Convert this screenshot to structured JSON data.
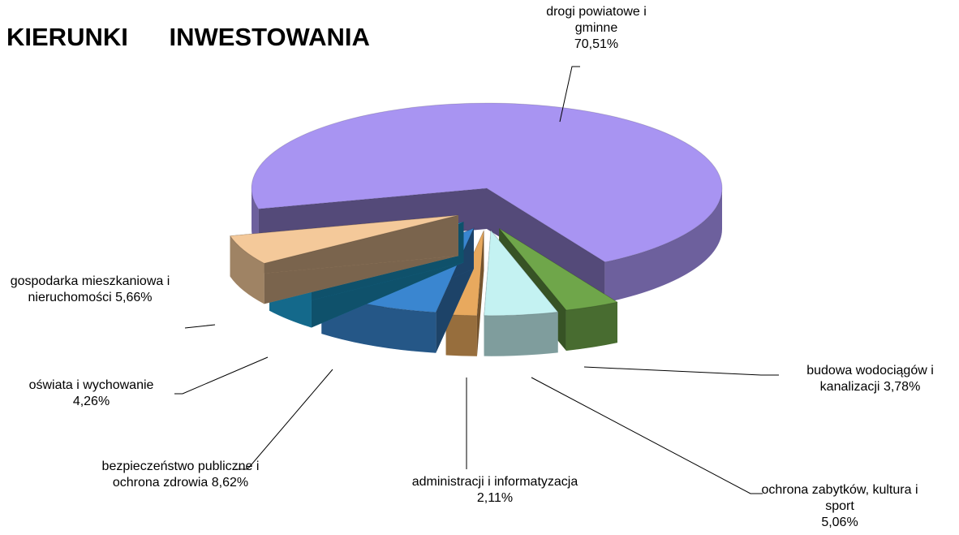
{
  "chart_data": {
    "type": "pie",
    "title": "KIERUNKI INWESTOWANIA",
    "categories": [
      "drogi powiatowe i gminne",
      "budowa wodociągów i kanalizacji",
      "ochrona zabytków, kultura i sport",
      "administracji i informatyzacja",
      "bezpieczeństwo publiczne i ochrona zdrowia",
      "oświata i wychowanie",
      "gospodarka mieszkaniowa i nieruchomości"
    ],
    "values": [
      70.51,
      3.78,
      5.06,
      2.11,
      8.62,
      4.26,
      5.66
    ],
    "value_labels": [
      "70,51%",
      "3,78%",
      "5,06%",
      "2,11%",
      "8,62%",
      "4,26%",
      "5,66%"
    ],
    "colors": [
      "#a894f2",
      "#6fa64a",
      "#c4f2f2",
      "#e8a95e",
      "#3a86d0",
      "#1fa2d6",
      "#f4c99a"
    ]
  }
}
